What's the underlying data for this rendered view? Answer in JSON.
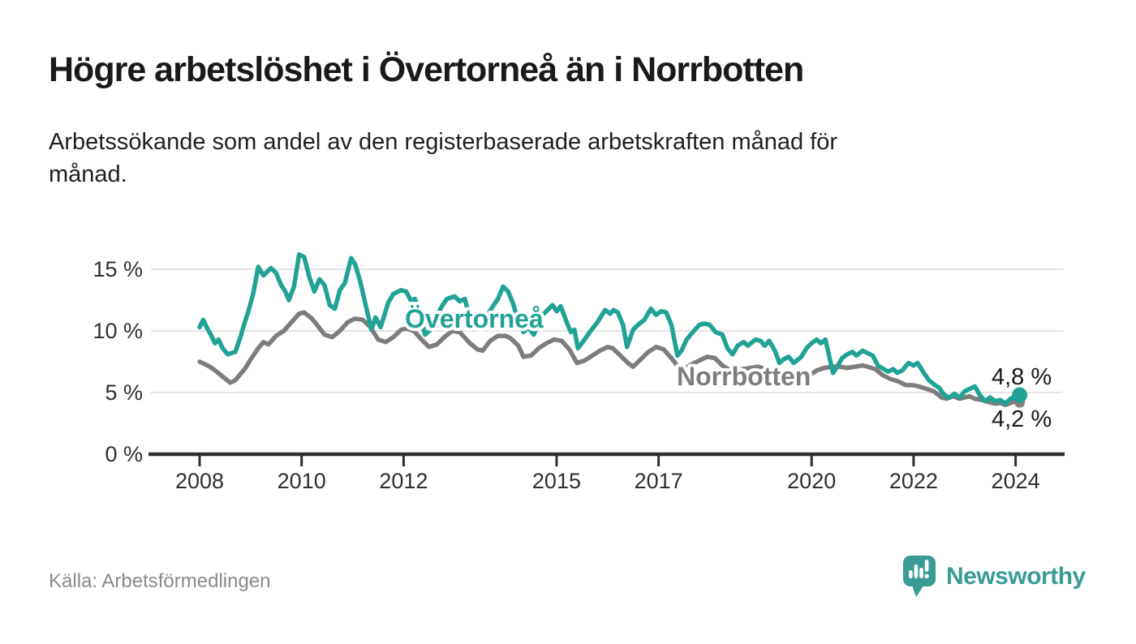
{
  "header": {
    "title": "Högre arbetslöshet i Övertorneå än i Norrbotten",
    "subtitle_lines": [
      "Arbetssökande som andel av den registerbaserade arbetskraften månad för",
      "månad."
    ]
  },
  "footer": {
    "source": "Källa: Arbetsförmedlingen",
    "brand": "Newsworthy"
  },
  "colors": {
    "accent_teal": "#20a394",
    "line_gray": "#7d7d7d",
    "grid_gray": "#dcdcdc",
    "axis_dark": "#2e2e2e",
    "text_dark": "#1a1a1a",
    "source_gray": "#8a8a8a",
    "brand_teal": "#389b94"
  },
  "chart_data": {
    "type": "line",
    "title": "Högre arbetslöshet i Övertorneå än i Norrbotten",
    "subtitle": "Arbetssökande som andel av den registerbaserade arbetskraften månad för månad.",
    "unit": "%",
    "source": "Arbetsförmedlingen",
    "grid": true,
    "legend_position": "inline-labels",
    "x_axis": {
      "range": [
        2008,
        2025
      ],
      "ticks": [
        {
          "value": 2008,
          "label": "2008"
        },
        {
          "value": 2010,
          "label": "2010"
        },
        {
          "value": 2012,
          "label": "2012"
        },
        {
          "value": 2015,
          "label": "2015"
        },
        {
          "value": 2017,
          "label": "2017"
        },
        {
          "value": 2020,
          "label": "2020"
        },
        {
          "value": 2022,
          "label": "2022"
        },
        {
          "value": 2024,
          "label": "2024"
        }
      ]
    },
    "y_axis": {
      "range": [
        0,
        17
      ],
      "ticks": [
        {
          "value": 0,
          "label": "0 %"
        },
        {
          "value": 5,
          "label": "5 %"
        },
        {
          "value": 10,
          "label": "10 %"
        },
        {
          "value": 15,
          "label": "15 %"
        }
      ]
    },
    "series": [
      {
        "name": "Övertorneå",
        "color": "#20a394",
        "end_label": "4,8 %",
        "end_value": 4.8,
        "points": [
          [
            2008.0,
            10.3
          ],
          [
            2008.07,
            10.9
          ],
          [
            2008.15,
            10.2
          ],
          [
            2008.22,
            9.7
          ],
          [
            2008.3,
            9.0
          ],
          [
            2008.37,
            9.3
          ],
          [
            2008.45,
            8.6
          ],
          [
            2008.55,
            8.1
          ],
          [
            2008.7,
            8.3
          ],
          [
            2008.8,
            9.5
          ],
          [
            2008.87,
            10.5
          ],
          [
            2008.95,
            11.5
          ],
          [
            2009.05,
            13.0
          ],
          [
            2009.15,
            15.2
          ],
          [
            2009.25,
            14.5
          ],
          [
            2009.4,
            15.1
          ],
          [
            2009.5,
            14.7
          ],
          [
            2009.6,
            13.7
          ],
          [
            2009.68,
            13.2
          ],
          [
            2009.75,
            12.5
          ],
          [
            2009.85,
            13.6
          ],
          [
            2009.95,
            16.2
          ],
          [
            2010.05,
            16.0
          ],
          [
            2010.15,
            14.4
          ],
          [
            2010.25,
            13.2
          ],
          [
            2010.35,
            14.2
          ],
          [
            2010.45,
            13.7
          ],
          [
            2010.55,
            12.1
          ],
          [
            2010.65,
            11.8
          ],
          [
            2010.75,
            13.3
          ],
          [
            2010.85,
            13.9
          ],
          [
            2010.97,
            15.9
          ],
          [
            2011.05,
            15.4
          ],
          [
            2011.15,
            14.0
          ],
          [
            2011.25,
            12.2
          ],
          [
            2011.37,
            10.1
          ],
          [
            2011.45,
            11.1
          ],
          [
            2011.55,
            10.3
          ],
          [
            2011.7,
            12.3
          ],
          [
            2011.8,
            13.0
          ],
          [
            2011.95,
            13.3
          ],
          [
            2012.05,
            13.2
          ],
          [
            2012.15,
            12.4
          ],
          [
            2012.22,
            12.6
          ],
          [
            2012.3,
            11.7
          ],
          [
            2012.42,
            9.7
          ],
          [
            2012.55,
            10.2
          ],
          [
            2012.65,
            11.2
          ],
          [
            2012.75,
            12.0
          ],
          [
            2012.85,
            12.6
          ],
          [
            2013.0,
            12.8
          ],
          [
            2013.1,
            12.4
          ],
          [
            2013.2,
            12.6
          ],
          [
            2013.35,
            10.2
          ],
          [
            2013.5,
            10.4
          ],
          [
            2013.62,
            11.1
          ],
          [
            2013.75,
            12.0
          ],
          [
            2013.85,
            12.6
          ],
          [
            2013.95,
            13.6
          ],
          [
            2014.05,
            13.2
          ],
          [
            2014.15,
            12.2
          ],
          [
            2014.25,
            10.7
          ],
          [
            2014.35,
            9.9
          ],
          [
            2014.45,
            10.3
          ],
          [
            2014.55,
            9.7
          ],
          [
            2014.7,
            11.2
          ],
          [
            2014.8,
            11.6
          ],
          [
            2014.92,
            12.1
          ],
          [
            2015.0,
            11.6
          ],
          [
            2015.08,
            12.0
          ],
          [
            2015.2,
            10.7
          ],
          [
            2015.28,
            9.9
          ],
          [
            2015.35,
            10.1
          ],
          [
            2015.42,
            8.6
          ],
          [
            2015.55,
            9.3
          ],
          [
            2015.65,
            9.9
          ],
          [
            2015.8,
            10.7
          ],
          [
            2015.95,
            11.7
          ],
          [
            2016.05,
            11.4
          ],
          [
            2016.12,
            11.7
          ],
          [
            2016.2,
            11.5
          ],
          [
            2016.3,
            10.5
          ],
          [
            2016.38,
            8.7
          ],
          [
            2016.5,
            10.1
          ],
          [
            2016.6,
            10.5
          ],
          [
            2016.72,
            10.9
          ],
          [
            2016.85,
            11.8
          ],
          [
            2016.95,
            11.3
          ],
          [
            2017.05,
            11.6
          ],
          [
            2017.15,
            11.5
          ],
          [
            2017.25,
            10.5
          ],
          [
            2017.37,
            8.0
          ],
          [
            2017.45,
            8.4
          ],
          [
            2017.55,
            9.3
          ],
          [
            2017.67,
            9.9
          ],
          [
            2017.8,
            10.5
          ],
          [
            2017.9,
            10.6
          ],
          [
            2018.0,
            10.5
          ],
          [
            2018.12,
            9.9
          ],
          [
            2018.25,
            9.7
          ],
          [
            2018.35,
            8.6
          ],
          [
            2018.45,
            8.1
          ],
          [
            2018.55,
            8.8
          ],
          [
            2018.67,
            9.1
          ],
          [
            2018.75,
            8.8
          ],
          [
            2018.9,
            9.3
          ],
          [
            2019.0,
            9.2
          ],
          [
            2019.08,
            8.8
          ],
          [
            2019.17,
            9.2
          ],
          [
            2019.28,
            8.4
          ],
          [
            2019.37,
            7.4
          ],
          [
            2019.45,
            7.7
          ],
          [
            2019.55,
            7.9
          ],
          [
            2019.65,
            7.4
          ],
          [
            2019.8,
            7.9
          ],
          [
            2019.9,
            8.6
          ],
          [
            2020.0,
            9.0
          ],
          [
            2020.1,
            9.3
          ],
          [
            2020.18,
            9.0
          ],
          [
            2020.27,
            9.3
          ],
          [
            2020.42,
            6.6
          ],
          [
            2020.5,
            7.1
          ],
          [
            2020.6,
            7.8
          ],
          [
            2020.7,
            8.1
          ],
          [
            2020.8,
            8.3
          ],
          [
            2020.88,
            8.0
          ],
          [
            2021.0,
            8.4
          ],
          [
            2021.1,
            8.2
          ],
          [
            2021.2,
            8.0
          ],
          [
            2021.3,
            7.2
          ],
          [
            2021.42,
            6.9
          ],
          [
            2021.5,
            6.7
          ],
          [
            2021.6,
            6.9
          ],
          [
            2021.68,
            6.6
          ],
          [
            2021.78,
            6.8
          ],
          [
            2021.9,
            7.4
          ],
          [
            2022.0,
            7.2
          ],
          [
            2022.08,
            7.4
          ],
          [
            2022.2,
            6.6
          ],
          [
            2022.3,
            6.0
          ],
          [
            2022.42,
            5.6
          ],
          [
            2022.5,
            5.4
          ],
          [
            2022.6,
            4.8
          ],
          [
            2022.7,
            4.6
          ],
          [
            2022.8,
            4.9
          ],
          [
            2022.9,
            4.6
          ],
          [
            2023.0,
            5.1
          ],
          [
            2023.1,
            5.3
          ],
          [
            2023.2,
            5.5
          ],
          [
            2023.3,
            4.8
          ],
          [
            2023.4,
            4.3
          ],
          [
            2023.5,
            4.6
          ],
          [
            2023.6,
            4.3
          ],
          [
            2023.7,
            4.4
          ],
          [
            2023.8,
            4.1
          ],
          [
            2023.9,
            4.5
          ],
          [
            2024.0,
            4.7
          ],
          [
            2024.08,
            4.8
          ]
        ]
      },
      {
        "name": "Norrbotten",
        "color": "#7d7d7d",
        "end_label": "4,2 %",
        "end_value": 4.2,
        "points": [
          [
            2008.0,
            7.5
          ],
          [
            2008.1,
            7.3
          ],
          [
            2008.2,
            7.1
          ],
          [
            2008.3,
            6.8
          ],
          [
            2008.45,
            6.3
          ],
          [
            2008.6,
            5.8
          ],
          [
            2008.7,
            6.0
          ],
          [
            2008.8,
            6.5
          ],
          [
            2008.9,
            7.0
          ],
          [
            2009.0,
            7.7
          ],
          [
            2009.15,
            8.6
          ],
          [
            2009.25,
            9.1
          ],
          [
            2009.35,
            8.9
          ],
          [
            2009.5,
            9.6
          ],
          [
            2009.65,
            10.0
          ],
          [
            2009.8,
            10.7
          ],
          [
            2009.95,
            11.4
          ],
          [
            2010.05,
            11.5
          ],
          [
            2010.2,
            11.0
          ],
          [
            2010.3,
            10.5
          ],
          [
            2010.45,
            9.7
          ],
          [
            2010.6,
            9.5
          ],
          [
            2010.75,
            10.0
          ],
          [
            2010.9,
            10.7
          ],
          [
            2011.05,
            11.0
          ],
          [
            2011.2,
            10.9
          ],
          [
            2011.35,
            10.3
          ],
          [
            2011.5,
            9.3
          ],
          [
            2011.65,
            9.1
          ],
          [
            2011.8,
            9.5
          ],
          [
            2011.95,
            10.1
          ],
          [
            2012.05,
            10.2
          ],
          [
            2012.2,
            10.0
          ],
          [
            2012.35,
            9.3
          ],
          [
            2012.5,
            8.7
          ],
          [
            2012.65,
            8.9
          ],
          [
            2012.8,
            9.5
          ],
          [
            2012.95,
            10.0
          ],
          [
            2013.1,
            9.9
          ],
          [
            2013.3,
            9.0
          ],
          [
            2013.45,
            8.5
          ],
          [
            2013.55,
            8.4
          ],
          [
            2013.7,
            9.2
          ],
          [
            2013.85,
            9.6
          ],
          [
            2014.0,
            9.6
          ],
          [
            2014.1,
            9.4
          ],
          [
            2014.25,
            8.8
          ],
          [
            2014.35,
            7.9
          ],
          [
            2014.5,
            8.0
          ],
          [
            2014.65,
            8.6
          ],
          [
            2014.8,
            9.0
          ],
          [
            2014.95,
            9.3
          ],
          [
            2015.1,
            9.2
          ],
          [
            2015.25,
            8.5
          ],
          [
            2015.4,
            7.4
          ],
          [
            2015.55,
            7.6
          ],
          [
            2015.7,
            8.0
          ],
          [
            2015.85,
            8.4
          ],
          [
            2016.0,
            8.7
          ],
          [
            2016.1,
            8.6
          ],
          [
            2016.25,
            8.0
          ],
          [
            2016.4,
            7.4
          ],
          [
            2016.5,
            7.1
          ],
          [
            2016.65,
            7.7
          ],
          [
            2016.8,
            8.3
          ],
          [
            2016.95,
            8.7
          ],
          [
            2017.1,
            8.5
          ],
          [
            2017.25,
            7.8
          ],
          [
            2017.4,
            7.0
          ],
          [
            2017.5,
            6.9
          ],
          [
            2017.65,
            7.3
          ],
          [
            2017.8,
            7.6
          ],
          [
            2017.95,
            7.9
          ],
          [
            2018.1,
            7.8
          ],
          [
            2018.25,
            7.2
          ],
          [
            2018.4,
            6.8
          ],
          [
            2018.5,
            6.7
          ],
          [
            2018.65,
            6.9
          ],
          [
            2018.8,
            7.0
          ],
          [
            2018.95,
            7.1
          ],
          [
            2019.1,
            6.9
          ],
          [
            2019.25,
            6.5
          ],
          [
            2019.4,
            6.2
          ],
          [
            2019.55,
            6.3
          ],
          [
            2019.7,
            6.4
          ],
          [
            2019.85,
            6.5
          ],
          [
            2020.0,
            6.5
          ],
          [
            2020.1,
            6.8
          ],
          [
            2020.25,
            7.0
          ],
          [
            2020.4,
            7.1
          ],
          [
            2020.55,
            7.1
          ],
          [
            2020.7,
            7.0
          ],
          [
            2020.85,
            7.1
          ],
          [
            2021.0,
            7.2
          ],
          [
            2021.1,
            7.1
          ],
          [
            2021.25,
            6.9
          ],
          [
            2021.4,
            6.4
          ],
          [
            2021.55,
            6.1
          ],
          [
            2021.7,
            5.9
          ],
          [
            2021.85,
            5.6
          ],
          [
            2022.0,
            5.6
          ],
          [
            2022.1,
            5.5
          ],
          [
            2022.25,
            5.3
          ],
          [
            2022.4,
            5.1
          ],
          [
            2022.55,
            4.6
          ],
          [
            2022.65,
            4.5
          ],
          [
            2022.78,
            4.7
          ],
          [
            2022.9,
            4.5
          ],
          [
            2023.0,
            4.6
          ],
          [
            2023.1,
            4.7
          ],
          [
            2023.2,
            4.5
          ],
          [
            2023.35,
            4.4
          ],
          [
            2023.5,
            4.2
          ],
          [
            2023.6,
            4.1
          ],
          [
            2023.7,
            4.15
          ],
          [
            2023.8,
            4.0
          ],
          [
            2023.9,
            4.15
          ],
          [
            2024.0,
            4.3
          ],
          [
            2024.08,
            4.2
          ]
        ]
      }
    ]
  }
}
